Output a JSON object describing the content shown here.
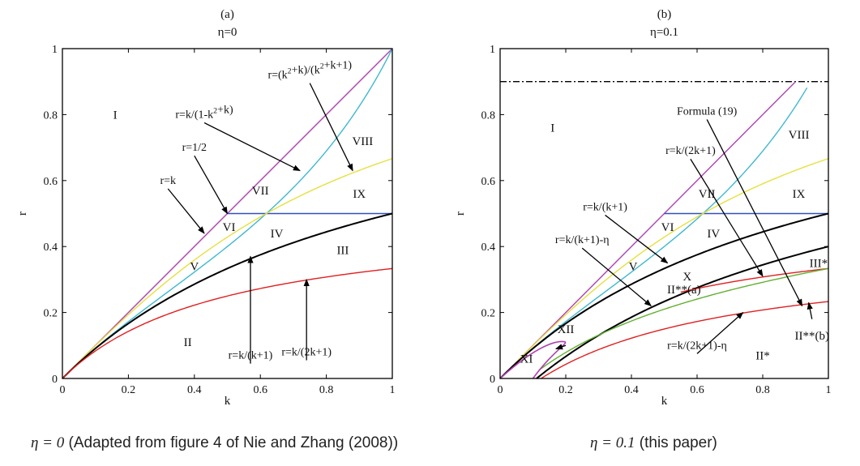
{
  "chart_data": [
    {
      "type": "line",
      "panel_label": "(a)",
      "title": "η=0",
      "xlabel": "k",
      "ylabel": "r",
      "xlim": [
        0,
        1
      ],
      "ylim": [
        0,
        1
      ],
      "xticks": [
        "0",
        "0.2",
        "0.4",
        "0.6",
        "0.8",
        "1"
      ],
      "yticks": [
        "0",
        "0.2",
        "0.4",
        "0.6",
        "0.8",
        "1"
      ],
      "grid": false,
      "series": [
        {
          "formula": "r=k",
          "color": "#b040b0",
          "kind": "line",
          "points": [
            [
              0,
              0
            ],
            [
              1,
              1
            ]
          ]
        },
        {
          "formula": "r=k/(1-k^2+k)",
          "color": "#40b8d0",
          "kind": "func",
          "fn": "k/(1-k*k+k)",
          "range": [
            0,
            1
          ]
        },
        {
          "formula": "r=1/2",
          "color": "#3050c0",
          "kind": "line",
          "points": [
            [
              0.5,
              0.5
            ],
            [
              1,
              0.5
            ]
          ]
        },
        {
          "formula": "r=(k^2+k)/(k^2+k+1)",
          "color": "#e6e040",
          "kind": "func",
          "fn": "(k*k+k)/(k*k+k+1)",
          "range": [
            0,
            1
          ]
        },
        {
          "formula": "r=k/(k+1)",
          "color": "#000000",
          "kind": "func",
          "fn": "k/(k+1)",
          "range": [
            0,
            1
          ],
          "width": 2
        },
        {
          "formula": "r=k/(2k+1)",
          "color": "#e02020",
          "kind": "func",
          "fn": "k/(2*k+1)",
          "range": [
            0,
            1
          ]
        }
      ],
      "regions": [
        {
          "label": "I",
          "k": 0.16,
          "r": 0.8
        },
        {
          "label": "II",
          "k": 0.38,
          "r": 0.11
        },
        {
          "label": "III",
          "k": 0.85,
          "r": 0.39
        },
        {
          "label": "IV",
          "k": 0.65,
          "r": 0.44
        },
        {
          "label": "V",
          "k": 0.4,
          "r": 0.34
        },
        {
          "label": "VI",
          "k": 0.505,
          "r": 0.46
        },
        {
          "label": "VII",
          "k": 0.6,
          "r": 0.57
        },
        {
          "label": "VIII",
          "k": 0.91,
          "r": 0.72
        },
        {
          "label": "IX",
          "k": 0.9,
          "r": 0.56
        }
      ],
      "annotations": [
        {
          "text": "r=k",
          "tx": 0.32,
          "ty": 0.59,
          "ax": 0.43,
          "ay": 0.44
        },
        {
          "text": "r=1/2",
          "tx": 0.4,
          "ty": 0.69,
          "ax": 0.5,
          "ay": 0.5
        },
        {
          "text": "r=k/(1-k^2+k)",
          "tx": 0.43,
          "ty": 0.79,
          "ax": 0.72,
          "ay": 0.63
        },
        {
          "text": "r=(k^2+k)/(k^2+k+1)",
          "tx": 0.75,
          "ty": 0.91,
          "ax": 0.88,
          "ay": 0.63
        },
        {
          "text": "r=k/(k+1)",
          "tx": 0.57,
          "ty": 0.06,
          "ax": 0.57,
          "ay": 0.37
        },
        {
          "text": "r=k/(2k+1)",
          "tx": 0.74,
          "ty": 0.07,
          "ax": 0.74,
          "ay": 0.3
        }
      ]
    },
    {
      "type": "line",
      "panel_label": "(b)",
      "title": "η=0.1",
      "xlabel": "k",
      "ylabel": "r",
      "xlim": [
        0,
        1
      ],
      "ylim": [
        0,
        1
      ],
      "xticks": [
        "0",
        "0.2",
        "0.4",
        "0.6",
        "0.8",
        "1"
      ],
      "yticks": [
        "0",
        "0.2",
        "0.4",
        "0.6",
        "0.8",
        "1"
      ],
      "grid": false,
      "series": [
        {
          "formula": "r=0.9",
          "color": "#000000",
          "kind": "line",
          "points": [
            [
              0,
              0.9
            ],
            [
              1,
              0.9
            ]
          ],
          "dash": "8,3,2,3"
        },
        {
          "formula": "r=k",
          "color": "#b040b0",
          "kind": "line",
          "points": [
            [
              0,
              0
            ],
            [
              0.9,
              0.9
            ]
          ]
        },
        {
          "formula": "r=k/(1-k^2+k)",
          "color": "#40b8d0",
          "kind": "func",
          "fn": "k/(1-k*k+k)",
          "range": [
            0,
            0.935
          ]
        },
        {
          "formula": "r=1/2",
          "color": "#3050c0",
          "kind": "line",
          "points": [
            [
              0.5,
              0.5
            ],
            [
              1,
              0.5
            ]
          ]
        },
        {
          "formula": "r=(k^2+k)/(k^2+k+1)",
          "color": "#e6e040",
          "kind": "func",
          "fn": "(k*k+k)/(k*k+k+1)",
          "range": [
            0,
            1
          ]
        },
        {
          "formula": "r=k/(k+1)",
          "color": "#000000",
          "kind": "func",
          "fn": "k/(k+1)",
          "range": [
            0,
            1
          ],
          "width": 2
        },
        {
          "formula": "r=k/(k+1)-η",
          "color": "#000000",
          "kind": "func",
          "fn": "k/(k+1)-0.1",
          "range": [
            0.111,
            1
          ],
          "width": 2
        },
        {
          "formula": "r=k/(2k+1)",
          "color": "#e02020",
          "kind": "func",
          "fn": "k/(2*k+1)",
          "range": [
            0.55,
            1
          ]
        },
        {
          "formula": "Formula (19)",
          "color": "#60b030",
          "kind": "func",
          "fn": "k/(2*k+1)-0.08*(1-k)",
          "range": [
            0.118,
            1
          ]
        },
        {
          "formula": "r=k/(2k+1)-η",
          "color": "#e02020",
          "kind": "func",
          "fn": "k/(2*k+1)-0.1",
          "range": [
            0.125,
            1
          ]
        }
      ],
      "loop": {
        "color": "#b040b0",
        "points": [
          [
            0.0,
            0.0
          ],
          [
            0.1,
            0.09
          ],
          [
            0.16,
            0.113
          ],
          [
            0.19,
            0.112
          ],
          [
            0.17,
            0.095
          ],
          [
            0.12,
            0.03
          ],
          [
            0.1,
            0.0
          ]
        ]
      },
      "regions": [
        {
          "label": "I",
          "k": 0.16,
          "r": 0.76
        },
        {
          "label": "II*",
          "k": 0.8,
          "r": 0.07
        },
        {
          "label": "II**(a)",
          "k": 0.56,
          "r": 0.27
        },
        {
          "label": "II**(b)",
          "k": 0.95,
          "r": 0.13
        },
        {
          "label": "III*",
          "k": 0.97,
          "r": 0.35
        },
        {
          "label": "IV",
          "k": 0.65,
          "r": 0.44
        },
        {
          "label": "V",
          "k": 0.405,
          "r": 0.34
        },
        {
          "label": "VI",
          "k": 0.51,
          "r": 0.46
        },
        {
          "label": "VII",
          "k": 0.63,
          "r": 0.56
        },
        {
          "label": "VIII",
          "k": 0.91,
          "r": 0.74
        },
        {
          "label": "IX",
          "k": 0.91,
          "r": 0.56
        },
        {
          "label": "X",
          "k": 0.57,
          "r": 0.31
        },
        {
          "label": "XI",
          "k": 0.08,
          "r": 0.06
        },
        {
          "label": "XII",
          "k": 0.2,
          "r": 0.15
        }
      ],
      "annotations": [
        {
          "text": "Formula (19)",
          "tx": 0.63,
          "ty": 0.8,
          "ax": 0.92,
          "ay": 0.22
        },
        {
          "text": "r=k/(2k+1)",
          "tx": 0.58,
          "ty": 0.68,
          "ax": 0.8,
          "ay": 0.31
        },
        {
          "text": "r=k/(k+1)",
          "tx": 0.32,
          "ty": 0.51,
          "ax": 0.51,
          "ay": 0.35
        },
        {
          "text": "r=k/(k+1)-η",
          "tx": 0.25,
          "ty": 0.41,
          "ax": 0.46,
          "ay": 0.22
        },
        {
          "text": "r=k/(2k+1)-η",
          "tx": 0.6,
          "ty": 0.09,
          "ax": 0.74,
          "ay": 0.2
        },
        {
          "text": "",
          "tx": 0.95,
          "ty": 0.18,
          "ax": 0.94,
          "ay": 0.23
        },
        {
          "text": "",
          "tx": 0.2,
          "ty": 0.1,
          "ax": 0.17,
          "ay": 0.09
        }
      ]
    }
  ],
  "captions": {
    "left_eta": "η = 0",
    "left_text": " (Adapted from figure 4 of Nie and Zhang (2008))",
    "right_eta": "η = 0.1",
    "right_text": " (this paper)"
  }
}
